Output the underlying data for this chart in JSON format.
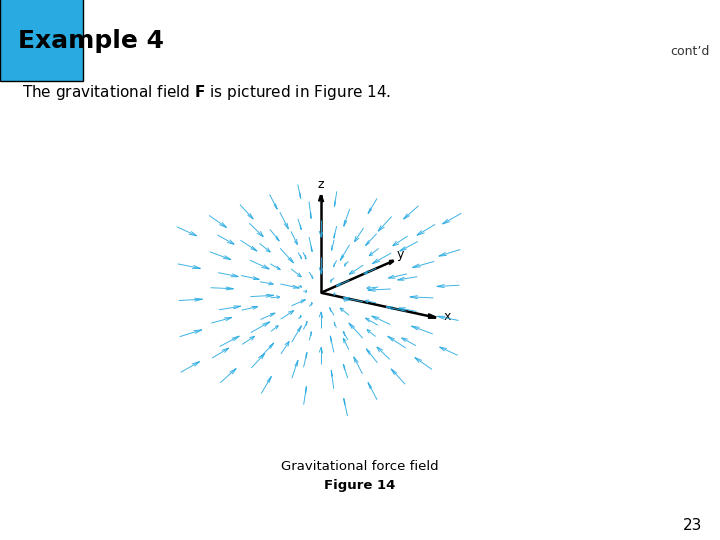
{
  "title": "Example 4",
  "contd": "cont’d",
  "body_text_plain": "The gravitational field ",
  "body_text_bold": "F",
  "body_text_rest": " is pictured in Figure 14.",
  "caption": "Gravitational force field",
  "figure_label": "Figure 14",
  "page_number": "23",
  "header_bg": "#29ABE2",
  "header_bar_bg": "#F5F0DC",
  "background_color": "#FFFFFF",
  "quiver_color": "#29ABE2",
  "n_grid": 5,
  "grid_range": 1.2,
  "elev": 18,
  "azim": -55
}
